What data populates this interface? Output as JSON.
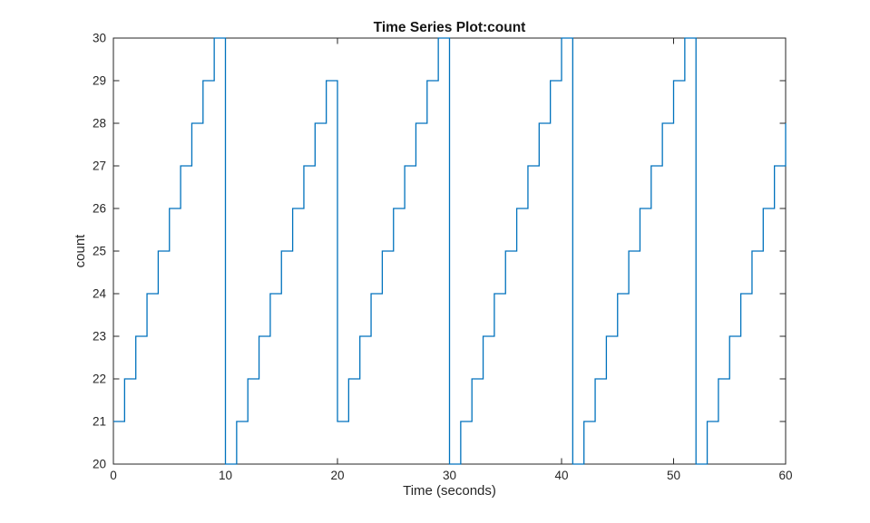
{
  "chart_data": {
    "type": "line",
    "subtype": "stairs",
    "title": "Time Series Plot:count",
    "xlabel": "Time (seconds)",
    "ylabel": "count",
    "xlim": [
      0,
      60
    ],
    "ylim": [
      20,
      30
    ],
    "xticks": [
      0,
      10,
      20,
      30,
      40,
      50,
      60
    ],
    "yticks": [
      20,
      21,
      22,
      23,
      24,
      25,
      26,
      27,
      28,
      29,
      30
    ],
    "grid": false,
    "legend_position": "none",
    "line_color": "#0072BD",
    "axis_color": "#262626",
    "background_color": "#ffffff",
    "x": [
      0,
      1,
      2,
      3,
      4,
      5,
      6,
      7,
      8,
      9,
      10,
      11,
      12,
      13,
      14,
      15,
      16,
      17,
      18,
      19,
      20,
      21,
      22,
      23,
      24,
      25,
      26,
      27,
      28,
      29,
      30,
      31,
      32,
      33,
      34,
      35,
      36,
      37,
      38,
      39,
      40,
      41,
      42,
      43,
      44,
      45,
      46,
      47,
      48,
      49,
      50,
      51,
      52,
      53,
      54,
      55,
      56,
      57,
      58,
      59,
      60
    ],
    "values": [
      21,
      22,
      23,
      24,
      25,
      26,
      27,
      28,
      29,
      30,
      20,
      21,
      22,
      23,
      24,
      25,
      26,
      27,
      28,
      29,
      21,
      22,
      23,
      24,
      25,
      26,
      27,
      28,
      29,
      30,
      20,
      21,
      22,
      23,
      24,
      25,
      26,
      27,
      28,
      29,
      30,
      20,
      21,
      22,
      23,
      24,
      25,
      26,
      27,
      28,
      29,
      30,
      20,
      21,
      22,
      23,
      24,
      25,
      26,
      27,
      28
    ]
  }
}
